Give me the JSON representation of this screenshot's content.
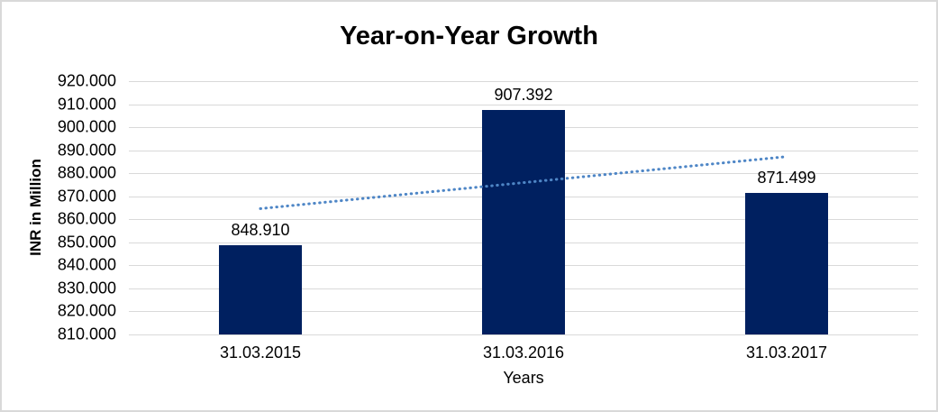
{
  "chart_data": {
    "type": "bar",
    "title": "Year-on-Year Growth",
    "xlabel": "Years",
    "ylabel": "INR in Million",
    "categories": [
      "31.03.2015",
      "31.03.2016",
      "31.03.2017"
    ],
    "values": [
      848.91,
      907.392,
      871.499
    ],
    "value_labels": [
      "848.910",
      "907.392",
      "871.499"
    ],
    "ylim": [
      810,
      920
    ],
    "ytick_step": 10,
    "ytick_labels": [
      "810.000",
      "820.000",
      "830.000",
      "840.000",
      "850.000",
      "860.000",
      "870.000",
      "880.000",
      "890.000",
      "900.000",
      "910.000",
      "920.000"
    ],
    "grid": "horizontal",
    "legend_position": "none",
    "colors": {
      "bar": "#002060",
      "gridline": "#d9d9d9",
      "trendline": "#4e86c6",
      "text": "#000000",
      "background": "#ffffff",
      "border": "#d9d9d9"
    },
    "trendline": {
      "type": "linear",
      "line_style": "dotted",
      "start_value": 864.637,
      "end_value": 887.226
    }
  }
}
